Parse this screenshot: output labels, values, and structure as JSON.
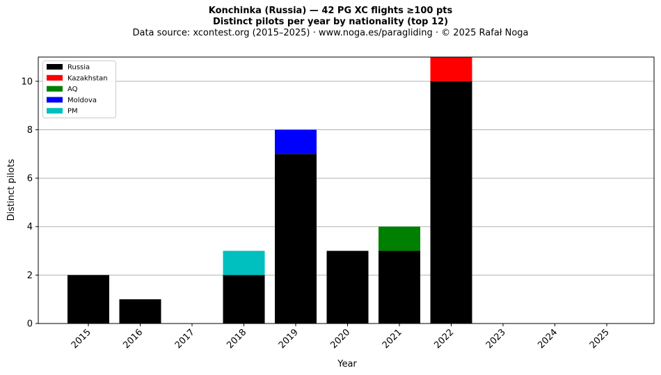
{
  "chart_data": {
    "type": "bar",
    "stacked": true,
    "title": "Konchinka (Russia)  —  42 PG XC flights ≥100 pts",
    "subtitle": "Distinct pilots per year by nationality (top 12)",
    "source": "Data source: xcontest.org (2015–2025)  ·  www.noga.es/paragliding  ·  © 2025 Rafał Noga",
    "xlabel": "Year",
    "ylabel": "Distinct pilots",
    "categories": [
      "2015",
      "2016",
      "2017",
      "2018",
      "2019",
      "2020",
      "2021",
      "2022",
      "2023",
      "2024",
      "2025"
    ],
    "series": [
      {
        "name": "Russia",
        "color": "#000000",
        "values": [
          2,
          1,
          0,
          2,
          7,
          3,
          3,
          10,
          0,
          0,
          0
        ]
      },
      {
        "name": "Kazakhstan",
        "color": "#ff0000",
        "values": [
          0,
          0,
          0,
          0,
          0,
          0,
          0,
          1,
          0,
          0,
          0
        ]
      },
      {
        "name": "AQ",
        "color": "#008000",
        "values": [
          0,
          0,
          0,
          0,
          0,
          0,
          1,
          0,
          0,
          0,
          0
        ]
      },
      {
        "name": "Moldova",
        "color": "#0000ff",
        "values": [
          0,
          0,
          0,
          0,
          1,
          0,
          0,
          0,
          0,
          0,
          0
        ]
      },
      {
        "name": "PM",
        "color": "#00bfbf",
        "values": [
          0,
          0,
          0,
          1,
          0,
          0,
          0,
          0,
          0,
          0,
          0
        ]
      }
    ],
    "yticks": [
      0,
      2,
      4,
      6,
      8,
      10
    ],
    "ylim": [
      0,
      11
    ],
    "grid": "y",
    "legend": "top-left"
  }
}
